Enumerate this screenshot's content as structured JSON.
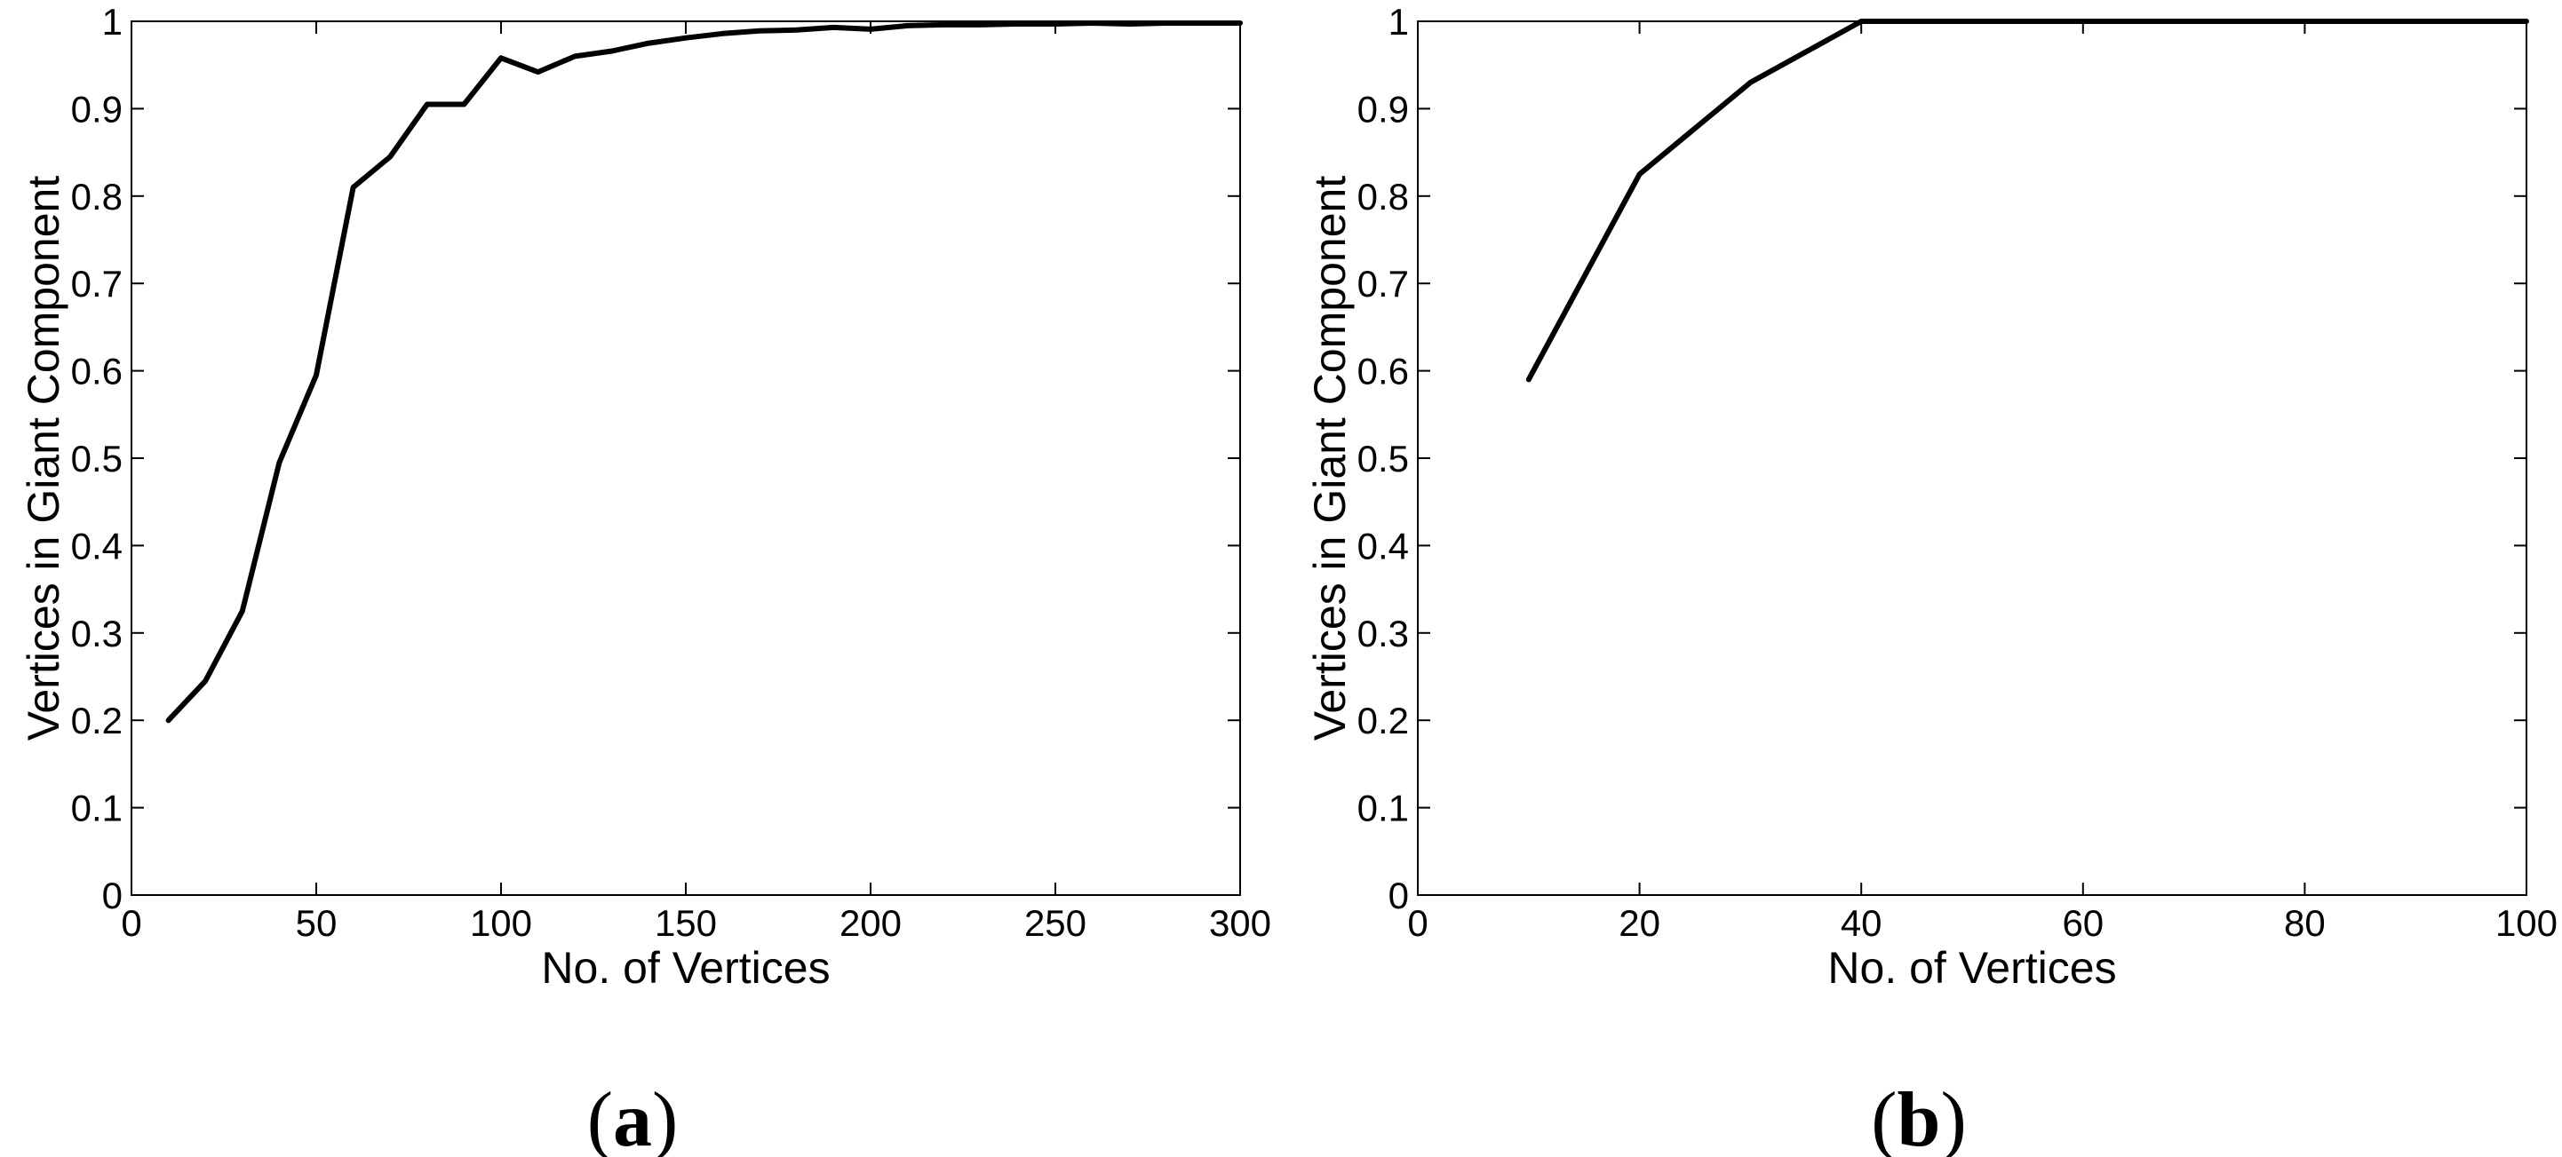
{
  "chart_data": [
    {
      "type": "line",
      "panel_label": "(a)",
      "panel_letter": "a",
      "xlabel": "No. of Vertices",
      "ylabel": "Vertices in Giant Component",
      "xlim": [
        0,
        300
      ],
      "ylim": [
        0,
        1
      ],
      "xticks": [
        0,
        50,
        100,
        150,
        200,
        250,
        300
      ],
      "yticks": [
        0,
        0.1,
        0.2,
        0.3,
        0.4,
        0.5,
        0.6,
        0.7,
        0.8,
        0.9,
        1
      ],
      "grid": false,
      "line_color": "#000000",
      "x": [
        10,
        20,
        30,
        40,
        50,
        60,
        70,
        80,
        90,
        100,
        110,
        120,
        130,
        140,
        150,
        160,
        170,
        180,
        190,
        200,
        210,
        220,
        230,
        240,
        250,
        260,
        270,
        280,
        290,
        300
      ],
      "y": [
        0.2,
        0.245,
        0.325,
        0.495,
        0.595,
        0.81,
        0.845,
        0.905,
        0.905,
        0.958,
        0.942,
        0.96,
        0.966,
        0.975,
        0.981,
        0.986,
        0.989,
        0.99,
        0.993,
        0.991,
        0.995,
        0.996,
        0.996,
        0.997,
        0.997,
        0.998,
        0.997,
        0.998,
        0.998,
        0.998
      ]
    },
    {
      "type": "line",
      "panel_label": "(b)",
      "panel_letter": "b",
      "xlabel": "No. of Vertices",
      "ylabel": "Vertices in Giant Component",
      "xlim": [
        0,
        100
      ],
      "ylim": [
        0,
        1
      ],
      "xticks": [
        0,
        20,
        40,
        60,
        80,
        100
      ],
      "yticks": [
        0,
        0.1,
        0.2,
        0.3,
        0.4,
        0.5,
        0.6,
        0.7,
        0.8,
        0.9,
        1
      ],
      "grid": false,
      "line_color": "#000000",
      "x": [
        10,
        20,
        30,
        40,
        50,
        60,
        70,
        80,
        90,
        100
      ],
      "y": [
        0.59,
        0.825,
        0.93,
        1.0,
        1.0,
        1.0,
        1.0,
        1.0,
        1.0,
        1.0
      ]
    }
  ]
}
